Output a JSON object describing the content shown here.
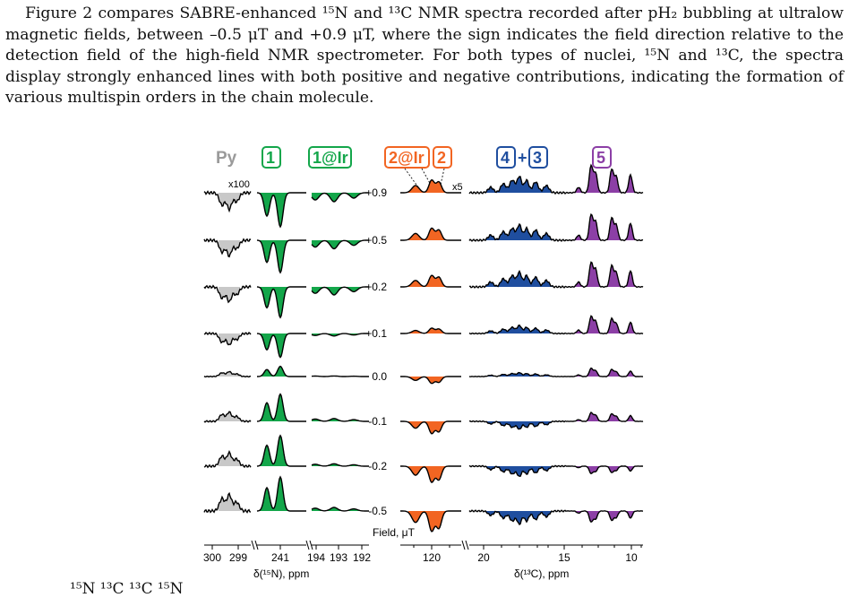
{
  "paragraph": "Figure 2 compares SABRE-enhanced ¹⁵N and ¹³C NMR spectra recorded after pH₂ bubbling at ultralow magnetic fields, between –0.5 μT and +0.9 μT, where the sign indicates the field direction relative to the detection field of the high-field NMR spectrometer. For both types of nuclei, ¹⁵N and ¹³C, the spectra display strongly enhanced lines with both positive and negative contributions, indicating the formation of various multispin orders in the chain molecule.",
  "caption_fragment": "¹⁵N   ¹³C   ¹³C  ¹⁵N",
  "figure": {
    "labels": {
      "py": "Py",
      "l1": "1",
      "l1ir": "1@Ir",
      "l2ir": "2@Ir",
      "l2": "2",
      "l4": "4",
      "plus": "+",
      "l3": "3",
      "l5": "5",
      "x100": "x100",
      "x5": "x5",
      "field_label": "Field, μT",
      "n_axis": "δ(¹⁵N), ppm",
      "c_axis": "δ(¹³C), ppm"
    },
    "colors": {
      "py": "#c8c8c8",
      "green": "#13a64a",
      "orange": "#f26522",
      "blue": "#1f4e9f",
      "purple": "#8c3fa6"
    },
    "fields": [
      "+0.9",
      "+0.5",
      "+0.2",
      "+0.1",
      "0.0",
      "-0.1",
      "-0.2",
      "-0.5"
    ],
    "n_ticks": [
      "300",
      "299",
      "241",
      "194",
      "193",
      "192"
    ],
    "c_ticks": [
      "120",
      "20",
      "15",
      "10"
    ]
  }
}
